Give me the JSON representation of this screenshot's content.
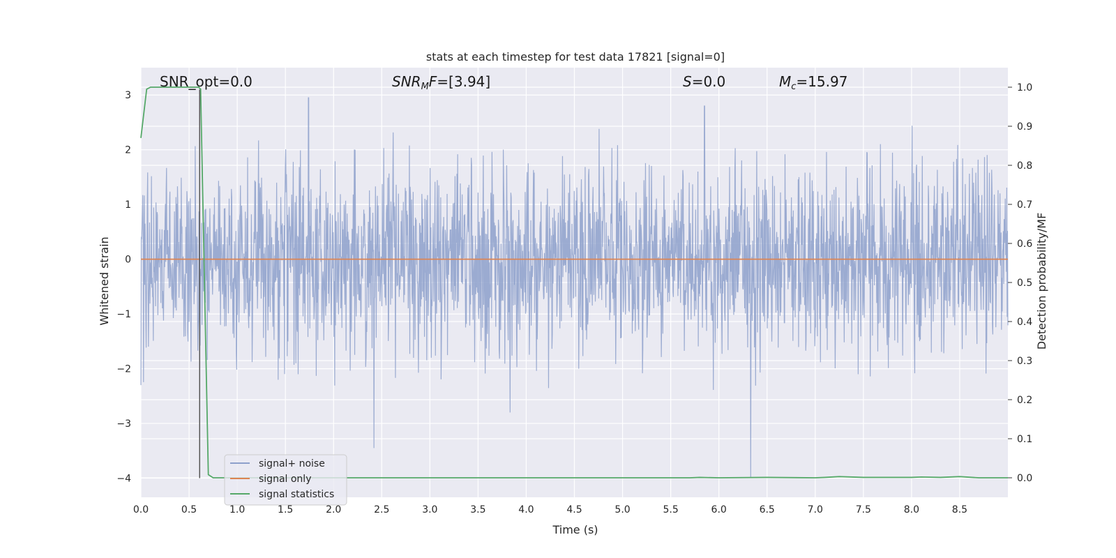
{
  "chart_data": {
    "type": "line",
    "title": "stats at each timestep for test data 17821 [signal=0]",
    "xlabel": "Time (s)",
    "ylabel": "Whitened strain",
    "ylabel_right": "Detection probability/MF",
    "xlim": [
      0.0,
      9.0
    ],
    "ylim": [
      -4.35,
      3.5
    ],
    "ylim_right": [
      -0.05,
      1.05
    ],
    "xticks": [
      "0.0",
      "0.5",
      "1.0",
      "1.5",
      "2.0",
      "2.5",
      "3.0",
      "3.5",
      "4.0",
      "4.5",
      "5.0",
      "5.5",
      "6.0",
      "6.5",
      "7.0",
      "7.5",
      "8.0",
      "8.5"
    ],
    "yticks": [
      "3",
      "2",
      "1",
      "0",
      "−1",
      "−2",
      "−3",
      "−4"
    ],
    "yticks_right": [
      "1.0",
      "0.9",
      "0.8",
      "0.7",
      "0.6",
      "0.5",
      "0.4",
      "0.3",
      "0.2",
      "0.1",
      "0.0"
    ],
    "grid": true,
    "legend_position": "lower-left",
    "annotations": [
      {
        "id": "snr_opt",
        "text": "SNR_opt=0.0"
      },
      {
        "id": "snr_mf",
        "text": "SNR_MF=[3.94]"
      },
      {
        "id": "s",
        "text": "S=0.0"
      },
      {
        "id": "mc",
        "text": "M_c=15.97"
      }
    ],
    "series": [
      {
        "name": "signal+ noise",
        "color": "#8da0cb",
        "axis": "left",
        "description": "whitened noise, roughly within -1.8 to 1.8 with spikes up to 2.95 near t=1.74 and down to -4.0 near t=6.33"
      },
      {
        "name": "signal only",
        "color": "#dd8452",
        "axis": "left",
        "x": [
          0.0,
          9.0
        ],
        "y": [
          0.0,
          0.0
        ]
      },
      {
        "name": "signal statistics",
        "color": "#55a868",
        "axis": "right",
        "x": [
          0.0,
          0.06,
          0.1,
          0.2,
          0.3,
          0.4,
          0.5,
          0.55,
          0.6,
          0.62,
          0.66,
          0.7,
          0.75,
          1.0,
          2.0,
          3.0,
          4.0,
          5.0,
          5.7,
          5.8,
          6.0,
          6.5,
          7.0,
          7.1,
          7.25,
          7.5,
          8.0,
          8.1,
          8.3,
          8.5,
          8.7,
          9.0
        ],
        "y": [
          0.87,
          0.995,
          1.0,
          1.0,
          1.0,
          1.0,
          1.0,
          1.0,
          1.0,
          0.995,
          0.5,
          0.008,
          0.0,
          0.0,
          0.0,
          0.0,
          0.0,
          0.0,
          0.0,
          0.001,
          0.0,
          0.001,
          0.0,
          0.001,
          0.003,
          0.001,
          0.001,
          0.002,
          0.001,
          0.003,
          0.0,
          0.0
        ]
      },
      {
        "name": "marker",
        "color": "#555555",
        "axis": "left",
        "x": [
          0.61,
          0.61
        ],
        "y": [
          -4.0,
          3.1
        ]
      }
    ],
    "legend": [
      "signal+ noise",
      "signal only",
      "signal statistics"
    ]
  }
}
